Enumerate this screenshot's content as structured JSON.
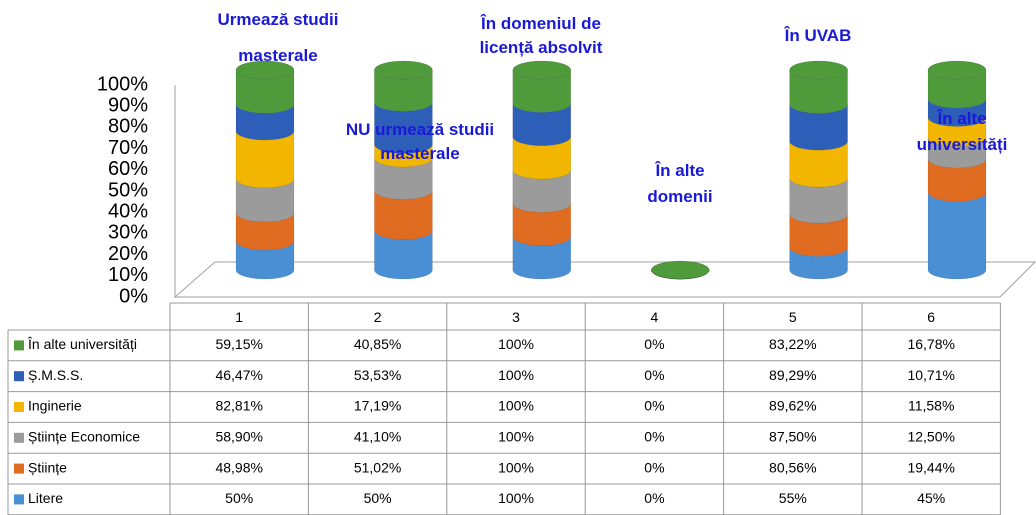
{
  "chart_data": {
    "type": "stacked100-cylinder",
    "categories": [
      "1",
      "2",
      "3",
      "4",
      "5",
      "6"
    ],
    "ylim": [
      0,
      100
    ],
    "yticks": [
      {
        "value": 0,
        "label": "0%"
      },
      {
        "value": 10,
        "label": "10%"
      },
      {
        "value": 20,
        "label": "20%"
      },
      {
        "value": 30,
        "label": "30%"
      },
      {
        "value": 40,
        "label": "40%"
      },
      {
        "value": 50,
        "label": "50%"
      },
      {
        "value": 60,
        "label": "60%"
      },
      {
        "value": 70,
        "label": "70%"
      },
      {
        "value": 80,
        "label": "80%"
      },
      {
        "value": 90,
        "label": "90%"
      },
      {
        "value": 100,
        "label": "100%"
      }
    ],
    "series": [
      {
        "name": "În alte universități",
        "color": "#4f9a3a",
        "values": [
          59.15,
          40.85,
          100,
          0,
          83.22,
          16.78
        ],
        "value_labels": [
          "59,15%",
          "40,85%",
          "100%",
          "0%",
          "83,22%",
          "16,78%"
        ]
      },
      {
        "name": "Ș.M.S.S.",
        "color": "#2e5fb8",
        "values": [
          46.47,
          53.53,
          100,
          0,
          89.29,
          10.71
        ],
        "value_labels": [
          "46,47%",
          "53,53%",
          "100%",
          "0%",
          "89,29%",
          "10,71%"
        ]
      },
      {
        "name": "Inginerie",
        "color": "#f2b600",
        "values": [
          82.81,
          17.19,
          100,
          0,
          89.62,
          11.58
        ],
        "value_labels": [
          "82,81%",
          "17,19%",
          "100%",
          "0%",
          "89,62%",
          "11,58%"
        ]
      },
      {
        "name": "Științe Economice",
        "color": "#9b9b9b",
        "values": [
          58.9,
          41.1,
          100,
          0,
          87.5,
          12.5
        ],
        "value_labels": [
          "58,90%",
          "41,10%",
          "100%",
          "0%",
          "87,50%",
          "12,50%"
        ]
      },
      {
        "name": "Științe",
        "color": "#e06c22",
        "values": [
          48.98,
          51.02,
          100,
          0,
          80.56,
          19.44
        ],
        "value_labels": [
          "48,98%",
          "51,02%",
          "100%",
          "0%",
          "80,56%",
          "19,44%"
        ]
      },
      {
        "name": "Litere",
        "color": "#4a8fd4",
        "values": [
          50,
          50,
          100,
          0,
          55,
          45
        ],
        "value_labels": [
          "50%",
          "50%",
          "100%",
          "0%",
          "55%",
          "45%"
        ]
      }
    ],
    "annotations": [
      "Urmează studii masterale",
      "NU urmează studii masterale",
      "În domeniul de licență absolvit",
      "În alte domenii",
      "În UVAB",
      "În alte universități"
    ]
  }
}
